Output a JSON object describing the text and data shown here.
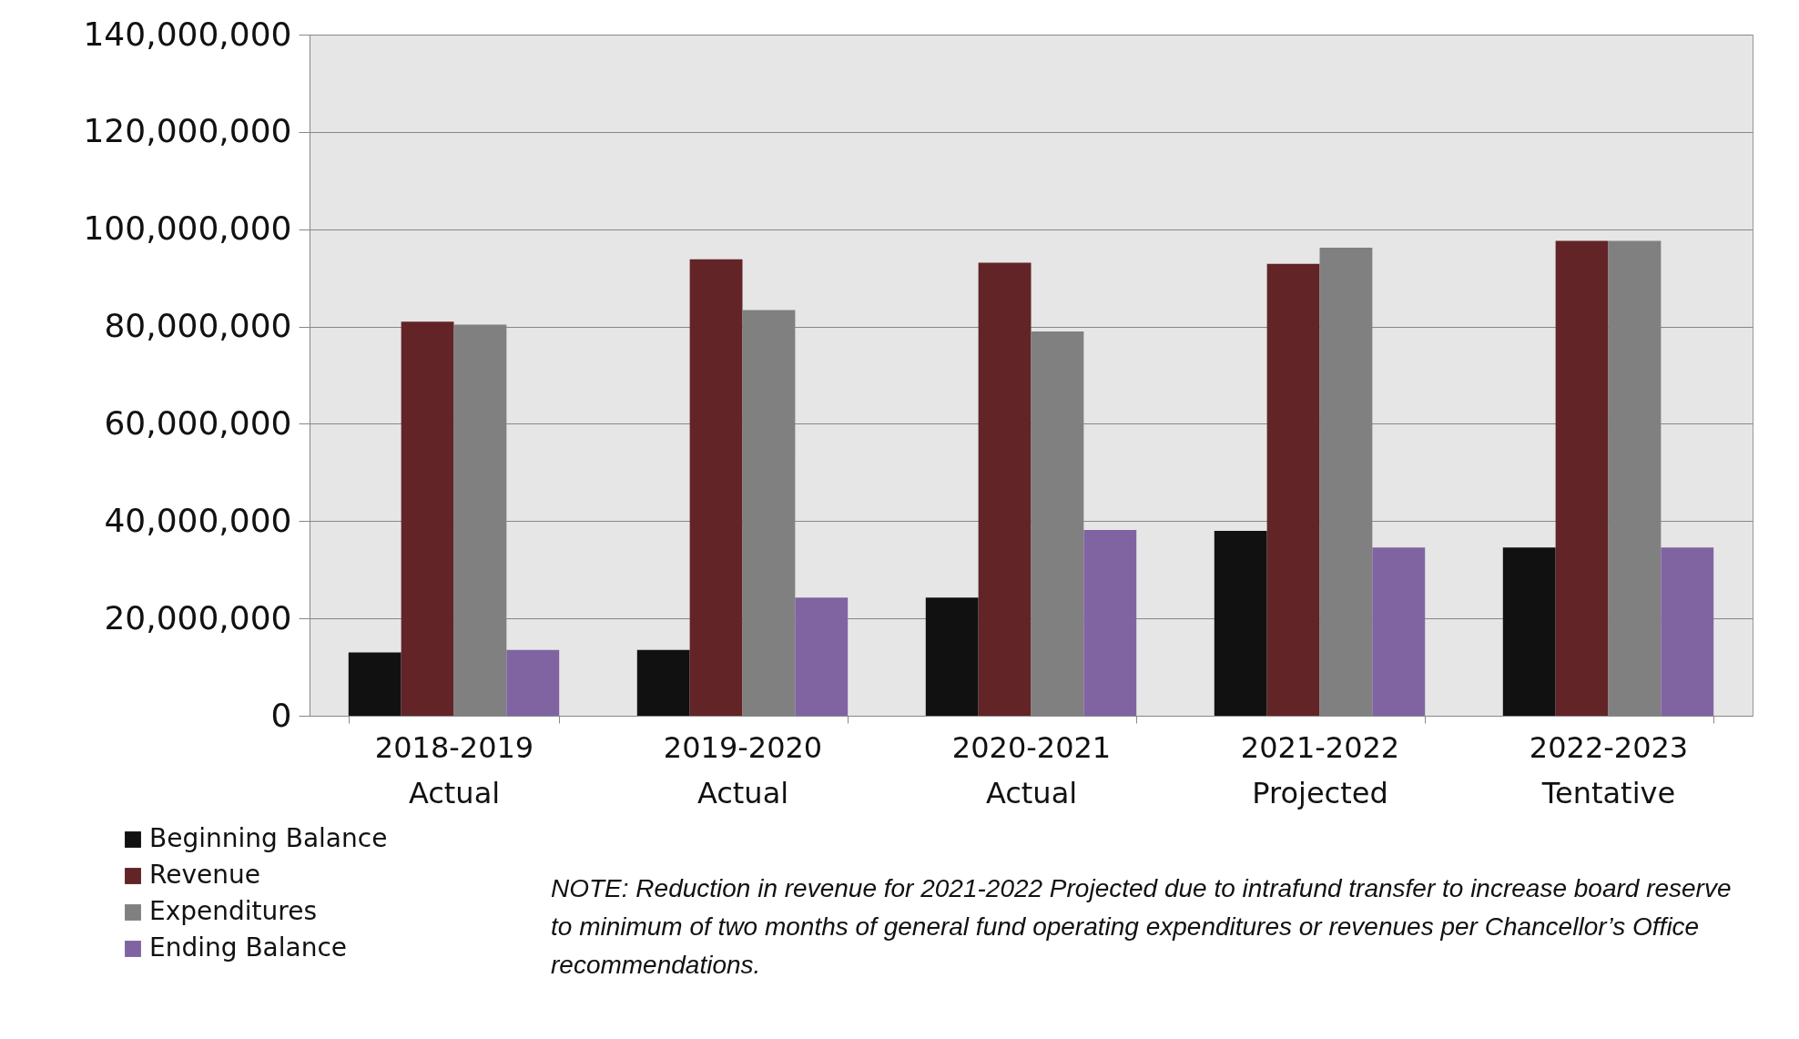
{
  "chart_data": {
    "type": "bar",
    "categories": [
      "2018-2019 Actual",
      "2019-2020 Actual",
      "2020-2021 Actual",
      "2021-2022 Projected",
      "2022-2023 Tentative"
    ],
    "series": [
      {
        "name": "Beginning Balance",
        "color": "#111111",
        "values": [
          13000000,
          13500000,
          24300000,
          38000000,
          34600000
        ]
      },
      {
        "name": "Revenue",
        "color": "#622426",
        "values": [
          81000000,
          93800000,
          93100000,
          92900000,
          97600000
        ]
      },
      {
        "name": "Expenditures",
        "color": "#808080",
        "values": [
          80400000,
          83400000,
          79000000,
          96200000,
          97600000
        ]
      },
      {
        "name": "Ending Balance",
        "color": "#8064a2",
        "values": [
          13500000,
          24300000,
          38200000,
          34600000,
          34600000
        ]
      }
    ],
    "ylim": [
      0,
      140000000
    ],
    "yticks": [
      0,
      {
        "value": 20000000,
        "label": "20,000,000"
      },
      {
        "value": 40000000,
        "label": "40,000,000"
      },
      {
        "value": 60000000,
        "label": "60,000,000"
      },
      {
        "value": 80000000,
        "label": "80,000,000"
      },
      {
        "value": 100000000,
        "label": "100,000,000"
      },
      {
        "value": 120000000,
        "label": "120,000,000"
      },
      {
        "value": 140000000,
        "label": "140,000,000"
      }
    ],
    "grid": "y",
    "legend": "bottom left",
    "annotations": [
      "NOTE:  Reduction in revenue for 2021-2022 Projected due to intrafund transfer to increase board reserve to minimum of two months of general fund operating expenditures or revenues per Chancellor’s Office recommendations."
    ]
  }
}
